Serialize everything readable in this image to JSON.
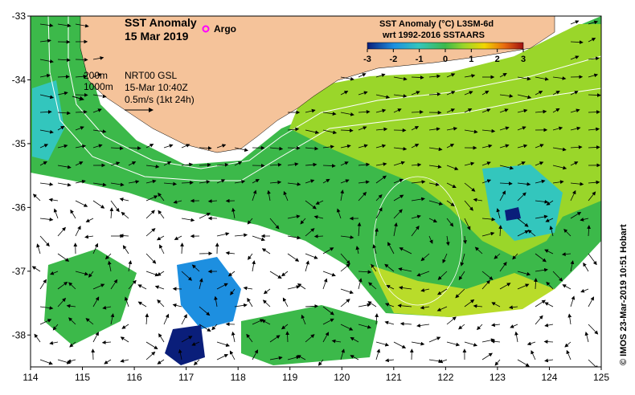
{
  "title": {
    "line1": "SST Anomaly",
    "line2": "15 Mar 2019",
    "argo_label": "Argo"
  },
  "info": {
    "depth_200": "200m",
    "depth_1000": "1000m",
    "product": "NRT00 GSL",
    "timestamp": "15-Mar 10:40Z",
    "speed_scale": "0.5m/s (1kt 24h)"
  },
  "colorbar": {
    "title": "SST Anomaly (°C) L3SM-6d",
    "subtitle": "wrt 1992-2016 SSTAARS",
    "ticks": [
      "-3",
      "-2",
      "-1",
      "0",
      "1",
      "2",
      "3"
    ],
    "range": [
      -3,
      3
    ]
  },
  "axes": {
    "x_ticks": [
      "114",
      "115",
      "116",
      "117",
      "118",
      "119",
      "120",
      "121",
      "122",
      "123",
      "124",
      "125"
    ],
    "y_ticks": [
      "-33",
      "-34",
      "-35",
      "-36",
      "-37",
      "-38"
    ],
    "x_range": [
      114,
      125
    ],
    "y_range": [
      -38.5,
      -33
    ]
  },
  "credit": "© IMOS 23-Mar-2019 10:51 Hobart",
  "colors": {
    "land": "#f5c39a",
    "no_data": "#ffffff",
    "ocean_green": "#3cb94a",
    "ocean_lime": "#9ad62a",
    "ocean_cyan": "#33c6bd",
    "ocean_blue": "#1d8fe0",
    "ocean_navy": "#0a1e7a",
    "argo": "#ff00ff"
  }
}
